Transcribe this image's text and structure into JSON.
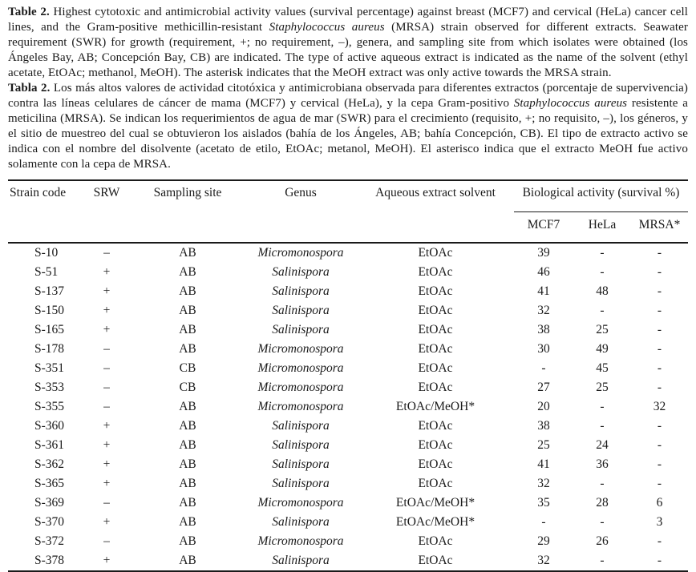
{
  "document": {
    "background": "#ffffff",
    "text_color": "#1a1a1a"
  },
  "captions": {
    "english": {
      "label": "Table 2.",
      "segments": [
        {
          "text": " Highest cytotoxic and antimicrobial activity values (survival percentage) against breast (MCF7) and cervical (HeLa) cancer cell lines, and the Gram-positive methicillin-resistant ",
          "style": "normal"
        },
        {
          "text": "Staphylococcus aureus",
          "style": "italic"
        },
        {
          "text": " (MRSA) strain observed for different extracts. Seawater requirement (SWR) for growth (requirement, +; no requirement, –), genera, and sampling site from which isolates were obtained (los Ángeles Bay, AB; Concepción Bay, CB) are indicated. The type of active aqueous extract is indicated as the name of the solvent (ethyl acetate, EtOAc; methanol, MeOH). The asterisk indicates that the MeOH extract was only active towards the MRSA strain.",
          "style": "normal"
        }
      ]
    },
    "spanish": {
      "label": "Tabla 2.",
      "segments": [
        {
          "text": " Los más altos valores de actividad citotóxica y antimicrobiana observada para diferentes extractos (porcentaje de supervivencia) contra las líneas celulares de cáncer de mama (MCF7) y cervical (HeLa), y la cepa Gram-positivo ",
          "style": "normal"
        },
        {
          "text": "Staphylococcus aureus",
          "style": "italic"
        },
        {
          "text": " resistente a meticilina (MRSA). Se indican los requerimientos de agua de mar (SWR) para el crecimiento (requisito, +; no requisito, –), los géneros, y el sitio de muestreo del cual se obtuvieron los aislados (bahía de los Ángeles, AB; bahía Concepción, CB). El tipo de extracto activo se indica con el nombre del disolvente (acetato de etilo, EtOAc; metanol, MeOH). El asterisco indica que el extracto MeOH fue activo solamente con la cepa de MRSA.",
          "style": "normal"
        }
      ]
    }
  },
  "table": {
    "header": {
      "strain_code": "Strain code",
      "srw": "SRW",
      "sampling_site": "Sampling site",
      "genus": "Genus",
      "solvent": "Aqueous extract solvent",
      "bio_activity": "Biological activity (survival %)",
      "mcf7": "MCF7",
      "hela": "HeLa",
      "mrsa": "MRSA*"
    },
    "columns": [
      {
        "name": "strain-code",
        "italic": false
      },
      {
        "name": "srw",
        "italic": false
      },
      {
        "name": "sampling-site",
        "italic": false
      },
      {
        "name": "genus",
        "italic": true
      },
      {
        "name": "solvent",
        "italic": false
      },
      {
        "name": "mcf7",
        "italic": false
      },
      {
        "name": "hela",
        "italic": false
      },
      {
        "name": "mrsa",
        "italic": false
      }
    ],
    "rows": [
      [
        "S-10",
        "–",
        "AB",
        "Micromonospora",
        "EtOAc",
        "39",
        "-",
        "-"
      ],
      [
        "S-51",
        "+",
        "AB",
        "Salinispora",
        "EtOAc",
        "46",
        "-",
        "-"
      ],
      [
        "S-137",
        "+",
        "AB",
        "Salinispora",
        "EtOAc",
        "41",
        "48",
        "-"
      ],
      [
        "S-150",
        "+",
        "AB",
        "Salinispora",
        "EtOAc",
        "32",
        "-",
        "-"
      ],
      [
        "S-165",
        "+",
        "AB",
        "Salinispora",
        "EtOAc",
        "38",
        "25",
        "-"
      ],
      [
        "S-178",
        "–",
        "AB",
        "Micromonospora",
        "EtOAc",
        "30",
        "49",
        "-"
      ],
      [
        "S-351",
        "–",
        "CB",
        "Micromonospora",
        "EtOAc",
        "-",
        "45",
        "-"
      ],
      [
        "S-353",
        "–",
        "CB",
        "Micromonospora",
        "EtOAc",
        "27",
        "25",
        "-"
      ],
      [
        "S-355",
        "–",
        "AB",
        "Micromonospora",
        "EtOAc/MeOH*",
        "20",
        "-",
        "32"
      ],
      [
        "S-360",
        "+",
        "AB",
        "Salinispora",
        "EtOAc",
        "38",
        "-",
        "-"
      ],
      [
        "S-361",
        "+",
        "AB",
        "Salinispora",
        "EtOAc",
        "25",
        "24",
        "-"
      ],
      [
        "S-362",
        "+",
        "AB",
        "Salinispora",
        "EtOAc",
        "41",
        "36",
        "-"
      ],
      [
        "S-365",
        "+",
        "AB",
        "Salinispora",
        "EtOAc",
        "32",
        "-",
        "-"
      ],
      [
        "S-369",
        "–",
        "AB",
        "Micromonospora",
        "EtOAc/MeOH*",
        "35",
        "28",
        "6"
      ],
      [
        "S-370",
        "+",
        "AB",
        "Salinispora",
        "EtOAc/MeOH*",
        "-",
        "-",
        "3"
      ],
      [
        "S-372",
        "–",
        "AB",
        "Micromonospora",
        "EtOAc",
        "29",
        "26",
        "-"
      ],
      [
        "S-378",
        "+",
        "AB",
        "Salinispora",
        "EtOAc",
        "32",
        "-",
        "-"
      ]
    ]
  }
}
